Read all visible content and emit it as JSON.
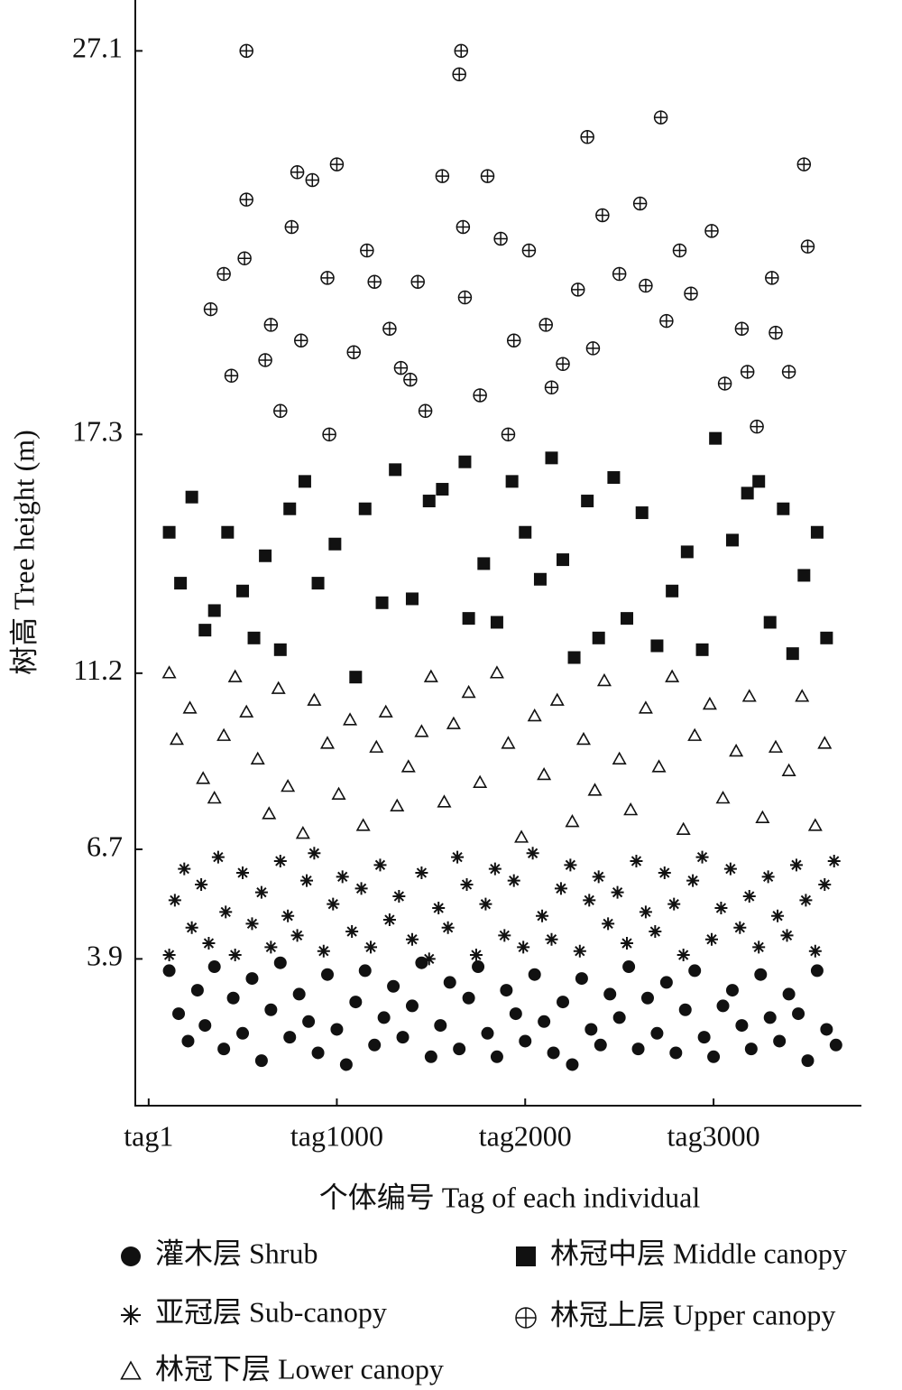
{
  "chart_data": {
    "type": "scatter",
    "xlabel": "个体编号 Tag of each individual",
    "ylabel": "树高 Tree height (m)",
    "xlim": [
      -70,
      3785
    ],
    "ylim": [
      0.15,
      28.4
    ],
    "xticks": [
      {
        "value": 1,
        "label": "tag1"
      },
      {
        "value": 1000,
        "label": "tag1000"
      },
      {
        "value": 2000,
        "label": "tag2000"
      },
      {
        "value": 3000,
        "label": "tag3000"
      }
    ],
    "yticks": [
      3.9,
      6.7,
      11.2,
      17.3,
      27.1
    ],
    "series": [
      {
        "name": "灌木层 Shrub",
        "marker": "circle",
        "color": "#111111",
        "x": [
          110,
          160,
          210,
          260,
          300,
          350,
          400,
          450,
          500,
          550,
          600,
          650,
          700,
          750,
          800,
          850,
          900,
          950,
          1000,
          1050,
          1100,
          1150,
          1200,
          1250,
          1300,
          1350,
          1400,
          1450,
          1500,
          1550,
          1600,
          1650,
          1700,
          1750,
          1800,
          1850,
          1900,
          1950,
          2000,
          2050,
          2100,
          2150,
          2200,
          2250,
          2300,
          2350,
          2400,
          2450,
          2500,
          2550,
          2600,
          2650,
          2700,
          2750,
          2800,
          2850,
          2900,
          2950,
          3000,
          3050,
          3100,
          3150,
          3200,
          3250,
          3300,
          3350,
          3400,
          3450,
          3500,
          3550,
          3600,
          3650
        ],
        "y": [
          3.6,
          2.5,
          1.8,
          3.1,
          2.2,
          3.7,
          1.6,
          2.9,
          2.0,
          3.4,
          1.3,
          2.6,
          3.8,
          1.9,
          3.0,
          2.3,
          1.5,
          3.5,
          2.1,
          1.2,
          2.8,
          3.6,
          1.7,
          2.4,
          3.2,
          1.9,
          2.7,
          3.8,
          1.4,
          2.2,
          3.3,
          1.6,
          2.9,
          3.7,
          2.0,
          1.4,
          3.1,
          2.5,
          1.8,
          3.5,
          2.3,
          1.5,
          2.8,
          1.2,
          3.4,
          2.1,
          1.7,
          3.0,
          2.4,
          3.7,
          1.6,
          2.9,
          2.0,
          3.3,
          1.5,
          2.6,
          3.6,
          1.9,
          1.4,
          2.7,
          3.1,
          2.2,
          1.6,
          3.5,
          2.4,
          1.8,
          3.0,
          2.5,
          1.3,
          3.6,
          2.1,
          1.7
        ]
      },
      {
        "name": "亚冠层 Sub-canopy",
        "marker": "asterisk",
        "color": "#111111",
        "x": [
          110,
          140,
          190,
          230,
          280,
          320,
          370,
          410,
          460,
          500,
          550,
          600,
          650,
          700,
          740,
          790,
          840,
          880,
          930,
          980,
          1030,
          1080,
          1130,
          1180,
          1230,
          1280,
          1330,
          1400,
          1450,
          1490,
          1540,
          1590,
          1640,
          1690,
          1740,
          1790,
          1840,
          1890,
          1940,
          1990,
          2040,
          2090,
          2140,
          2190,
          2240,
          2290,
          2340,
          2390,
          2440,
          2490,
          2540,
          2590,
          2640,
          2690,
          2740,
          2790,
          2840,
          2890,
          2940,
          2990,
          3040,
          3090,
          3140,
          3190,
          3240,
          3290,
          3340,
          3390,
          3440,
          3490,
          3540,
          3590,
          3640
        ],
        "y": [
          4.0,
          5.4,
          6.2,
          4.7,
          5.8,
          4.3,
          6.5,
          5.1,
          4.0,
          6.1,
          4.8,
          5.6,
          4.2,
          6.4,
          5.0,
          4.5,
          5.9,
          6.6,
          4.1,
          5.3,
          6.0,
          4.6,
          5.7,
          4.2,
          6.3,
          4.9,
          5.5,
          4.4,
          6.1,
          3.9,
          5.2,
          4.7,
          6.5,
          5.8,
          4.0,
          5.3,
          6.2,
          4.5,
          5.9,
          4.2,
          6.6,
          5.0,
          4.4,
          5.7,
          6.3,
          4.1,
          5.4,
          6.0,
          4.8,
          5.6,
          4.3,
          6.4,
          5.1,
          4.6,
          6.1,
          5.3,
          4.0,
          5.9,
          6.5,
          4.4,
          5.2,
          6.2,
          4.7,
          5.5,
          4.2,
          6.0,
          5.0,
          4.5,
          6.3,
          5.4,
          4.1,
          5.8,
          6.4
        ]
      },
      {
        "name": "林冠下层 Lower canopy",
        "marker": "triangle",
        "color": "#111111",
        "x": [
          110,
          150,
          220,
          290,
          350,
          400,
          460,
          520,
          580,
          640,
          690,
          740,
          820,
          880,
          950,
          1010,
          1070,
          1140,
          1210,
          1260,
          1320,
          1380,
          1450,
          1500,
          1570,
          1620,
          1700,
          1760,
          1850,
          1910,
          1980,
          2050,
          2100,
          2170,
          2250,
          2310,
          2370,
          2420,
          2500,
          2560,
          2640,
          2710,
          2780,
          2840,
          2900,
          2980,
          3050,
          3120,
          3190,
          3260,
          3330,
          3400,
          3470,
          3540,
          3590
        ],
        "y": [
          11.2,
          9.5,
          10.3,
          8.5,
          8.0,
          9.6,
          11.1,
          10.2,
          9.0,
          7.6,
          10.8,
          8.3,
          7.1,
          10.5,
          9.4,
          8.1,
          10.0,
          7.3,
          9.3,
          10.2,
          7.8,
          8.8,
          9.7,
          11.1,
          7.9,
          9.9,
          10.7,
          8.4,
          11.2,
          9.4,
          7.0,
          10.1,
          8.6,
          10.5,
          7.4,
          9.5,
          8.2,
          11.0,
          9.0,
          7.7,
          10.3,
          8.8,
          11.1,
          7.2,
          9.6,
          10.4,
          8.0,
          9.2,
          10.6,
          7.5,
          9.3,
          8.7,
          10.6,
          7.3,
          9.4
        ]
      },
      {
        "name": "林冠中层 Middle canopy",
        "marker": "square",
        "color": "#111111",
        "x": [
          110,
          170,
          230,
          300,
          350,
          420,
          500,
          560,
          620,
          700,
          750,
          830,
          900,
          990,
          1100,
          1150,
          1240,
          1310,
          1400,
          1490,
          1560,
          1680,
          1700,
          1780,
          1850,
          1930,
          2000,
          2080,
          2140,
          2200,
          2260,
          2330,
          2390,
          2470,
          2540,
          2620,
          2700,
          2780,
          2860,
          2940,
          3010,
          3100,
          3180,
          3240,
          3300,
          3370,
          3420,
          3480,
          3550,
          3600
        ],
        "y": [
          14.8,
          13.5,
          15.7,
          12.3,
          12.8,
          14.8,
          13.3,
          12.1,
          14.2,
          11.8,
          15.4,
          16.1,
          13.5,
          14.5,
          11.1,
          15.4,
          13.0,
          16.4,
          13.1,
          15.6,
          15.9,
          16.6,
          12.6,
          14.0,
          12.5,
          16.1,
          14.8,
          13.6,
          16.7,
          14.1,
          11.6,
          15.6,
          12.1,
          16.2,
          12.6,
          15.3,
          11.9,
          13.3,
          14.3,
          11.8,
          17.2,
          14.6,
          15.8,
          16.1,
          12.5,
          15.4,
          11.7,
          13.7,
          14.8,
          12.1
        ]
      },
      {
        "name": "林冠上层 Upper canopy",
        "marker": "circle-plus",
        "color": "#111111",
        "x": [
          330,
          400,
          440,
          520,
          520,
          510,
          620,
          650,
          700,
          760,
          790,
          810,
          870,
          950,
          960,
          1000,
          1090,
          1160,
          1200,
          1280,
          1340,
          1390,
          1430,
          1470,
          1560,
          1660,
          1650,
          1670,
          1680,
          1760,
          1800,
          1870,
          1910,
          1940,
          2020,
          2110,
          2140,
          2200,
          2280,
          2330,
          2360,
          2410,
          2500,
          2610,
          2640,
          2720,
          2750,
          2820,
          2880,
          2990,
          3060,
          3150,
          3180,
          3230,
          3310,
          3330,
          3400,
          3480,
          3500
        ],
        "y": [
          20.5,
          21.4,
          18.8,
          27.1,
          23.3,
          21.8,
          19.2,
          20.1,
          17.9,
          22.6,
          24.0,
          19.7,
          23.8,
          21.3,
          17.3,
          24.2,
          19.4,
          22.0,
          21.2,
          20.0,
          19.0,
          18.7,
          21.2,
          17.9,
          23.9,
          27.1,
          26.5,
          22.6,
          20.8,
          18.3,
          23.9,
          22.3,
          17.3,
          19.7,
          22.0,
          20.1,
          18.5,
          19.1,
          21.0,
          24.9,
          19.5,
          22.9,
          21.4,
          23.2,
          21.1,
          25.4,
          20.2,
          22.0,
          20.9,
          22.5,
          18.6,
          20.0,
          18.9,
          17.5,
          21.3,
          19.9,
          18.9,
          24.2,
          22.1
        ]
      }
    ]
  }
}
